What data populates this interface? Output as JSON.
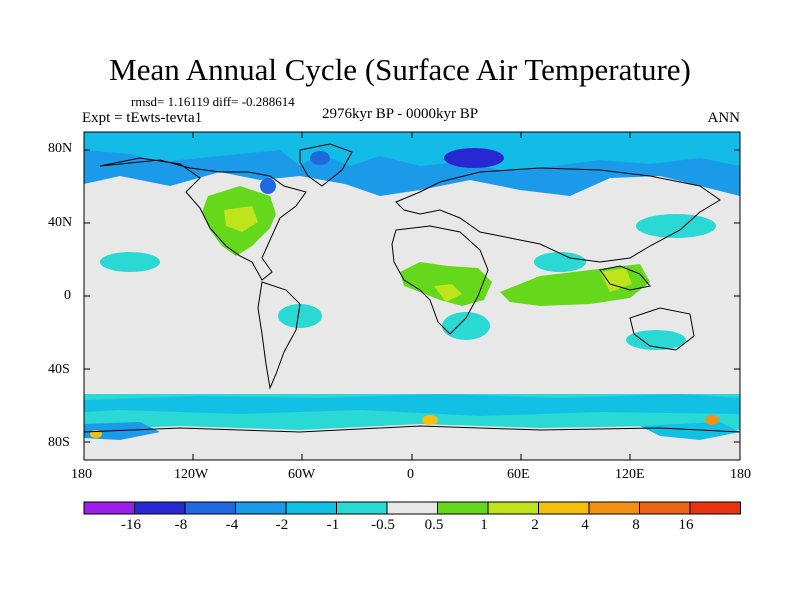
{
  "title": "Mean Annual Cycle (Surface Air Temperature)",
  "stats": "rmsd= 1.16119 diff= -0.288614",
  "experiment": "Expt = tEwts-tevta1",
  "period": "2976kyr BP - 0000kyr BP",
  "season": "ANN",
  "lat_ticks": [
    "80N",
    "40N",
    "0",
    "40S",
    "80S"
  ],
  "lon_ticks": [
    "180",
    "120W",
    "60W",
    "0",
    "60E",
    "120E",
    "180"
  ],
  "colorbar": {
    "labels": [
      "-16",
      "-8",
      "-4",
      "-2",
      "-1",
      "-0.5",
      "0.5",
      "1",
      "2",
      "4",
      "8",
      "16"
    ],
    "colors": [
      "#9b1fe8",
      "#2828d2",
      "#1f68e0",
      "#1a9ae8",
      "#12c0e6",
      "#2ad8d4",
      "#e8e8e8",
      "#66d81c",
      "#c0e41c",
      "#f4c010",
      "#f29014",
      "#ec6414",
      "#e63410"
    ]
  }
}
